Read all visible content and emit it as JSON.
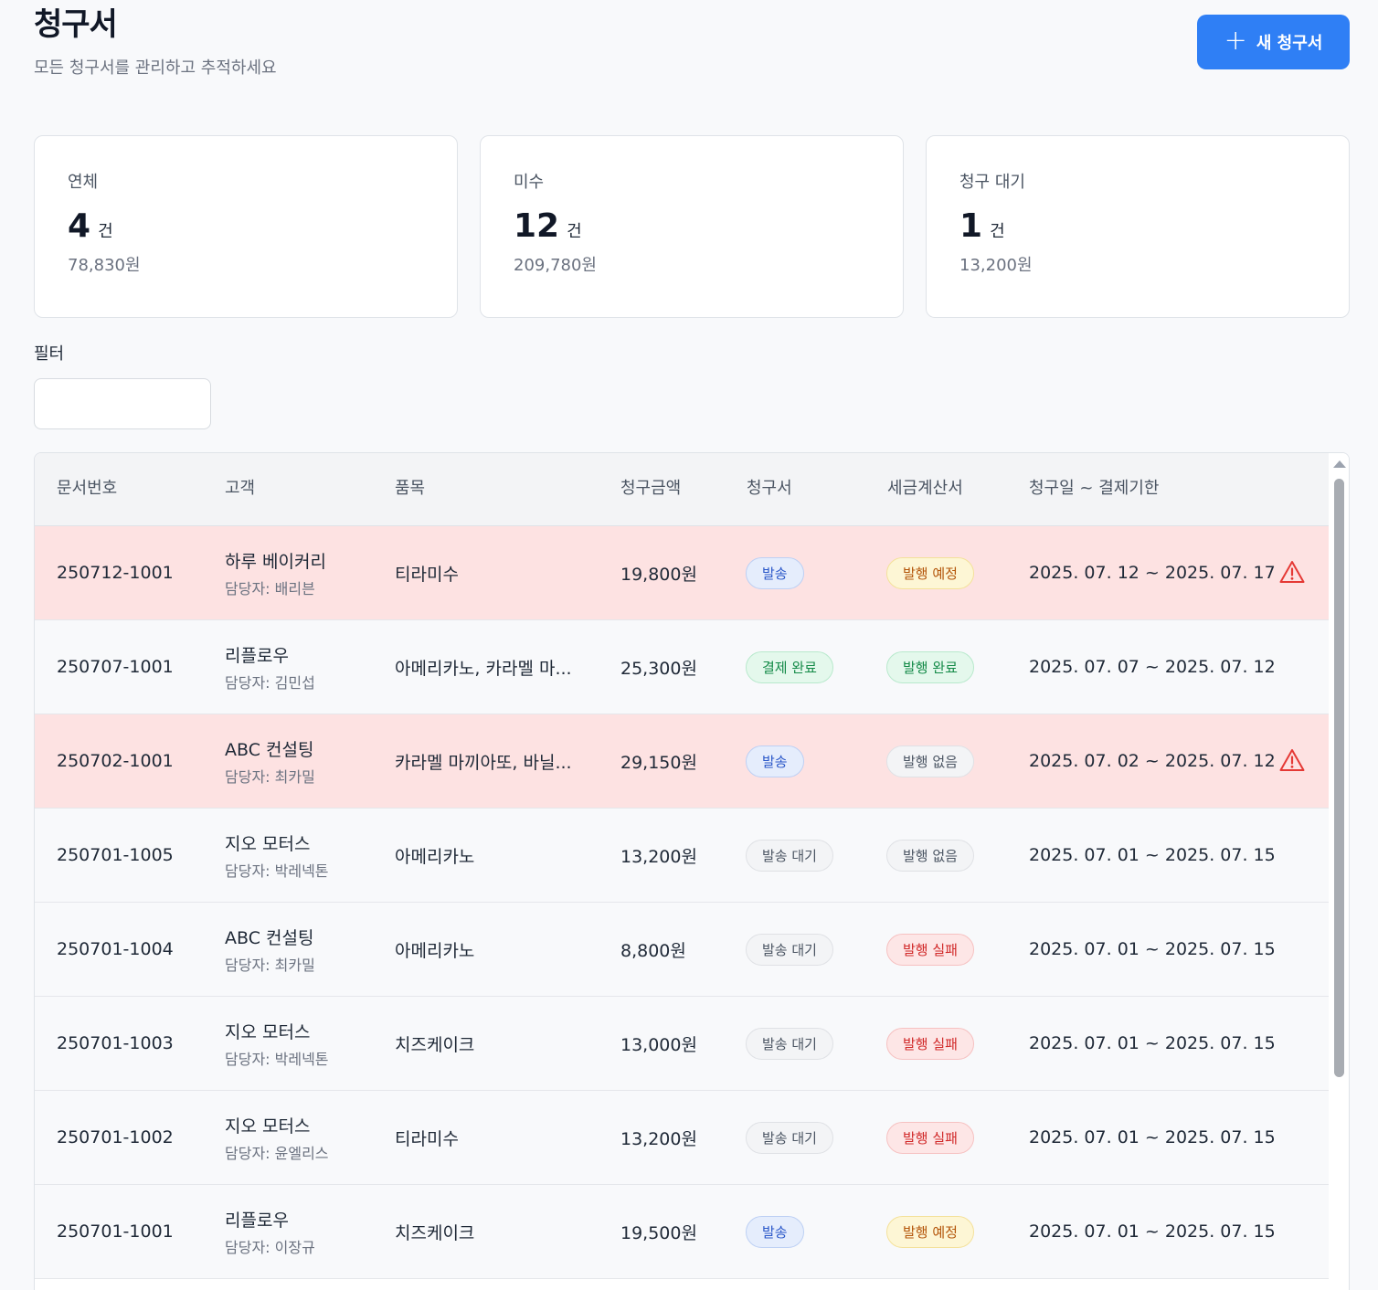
{
  "header": {
    "title": "청구서",
    "subtitle": "모든 청구서를 관리하고 추적하세요",
    "new_button": "새 청구서"
  },
  "cards": [
    {
      "label": "연체",
      "count": "4",
      "unit": "건",
      "amount": "78,830원"
    },
    {
      "label": "미수",
      "count": "12",
      "unit": "건",
      "amount": "209,780원"
    },
    {
      "label": "청구 대기",
      "count": "1",
      "unit": "건",
      "amount": "13,200원"
    }
  ],
  "filter": {
    "label": "필터",
    "value": ""
  },
  "table": {
    "columns": [
      "문서번호",
      "고객",
      "품목",
      "청구금액",
      "청구서",
      "세금계산서",
      "청구일 ~ 결제기한"
    ],
    "rows": [
      {
        "doc": "250712-1001",
        "customer": "하루 베이커리",
        "manager": "담당자: 배리븐",
        "item": "티라미수",
        "amount": "19,800원",
        "invoice": "발송",
        "tax": "발행 예정",
        "period": "2025. 07. 12 ~ 2025. 07. 17"
      },
      {
        "doc": "250707-1001",
        "customer": "리플로우",
        "manager": "담당자: 김민섭",
        "item": "아메리카노, 카라멜 마...",
        "amount": "25,300원",
        "invoice": "결제 완료",
        "tax": "발행 완료",
        "period": "2025. 07. 07 ~ 2025. 07. 12"
      },
      {
        "doc": "250702-1001",
        "customer": "ABC 컨설팅",
        "manager": "담당자: 최카밀",
        "item": "카라멜 마끼아또, 바닐...",
        "amount": "29,150원",
        "invoice": "발송",
        "tax": "발행 없음",
        "period": "2025. 07. 02 ~ 2025. 07. 12"
      },
      {
        "doc": "250701-1005",
        "customer": "지오 모터스",
        "manager": "담당자: 박레넥톤",
        "item": "아메리카노",
        "amount": "13,200원",
        "invoice": "발송 대기",
        "tax": "발행 없음",
        "period": "2025. 07. 01 ~ 2025. 07. 15"
      },
      {
        "doc": "250701-1004",
        "customer": "ABC 컨설팅",
        "manager": "담당자: 최카밀",
        "item": "아메리카노",
        "amount": "8,800원",
        "invoice": "발송 대기",
        "tax": "발행 실패",
        "period": "2025. 07. 01 ~ 2025. 07. 15"
      },
      {
        "doc": "250701-1003",
        "customer": "지오 모터스",
        "manager": "담당자: 박레넥톤",
        "item": "치즈케이크",
        "amount": "13,000원",
        "invoice": "발송 대기",
        "tax": "발행 실패",
        "period": "2025. 07. 01 ~ 2025. 07. 15"
      },
      {
        "doc": "250701-1002",
        "customer": "지오 모터스",
        "manager": "담당자: 윤엘리스",
        "item": "티라미수",
        "amount": "13,200원",
        "invoice": "발송 대기",
        "tax": "발행 실패",
        "period": "2025. 07. 01 ~ 2025. 07. 15"
      },
      {
        "doc": "250701-1001",
        "customer": "리플로우",
        "manager": "담당자: 이장규",
        "item": "치즈케이크",
        "amount": "19,500원",
        "invoice": "발송",
        "tax": "발행 예정",
        "period": "2025. 07. 01 ~ 2025. 07. 15"
      }
    ]
  },
  "colors": {
    "accent": "#2f7ff5",
    "overdue_row": "#fde2e2",
    "warning_icon": "#e53935"
  }
}
